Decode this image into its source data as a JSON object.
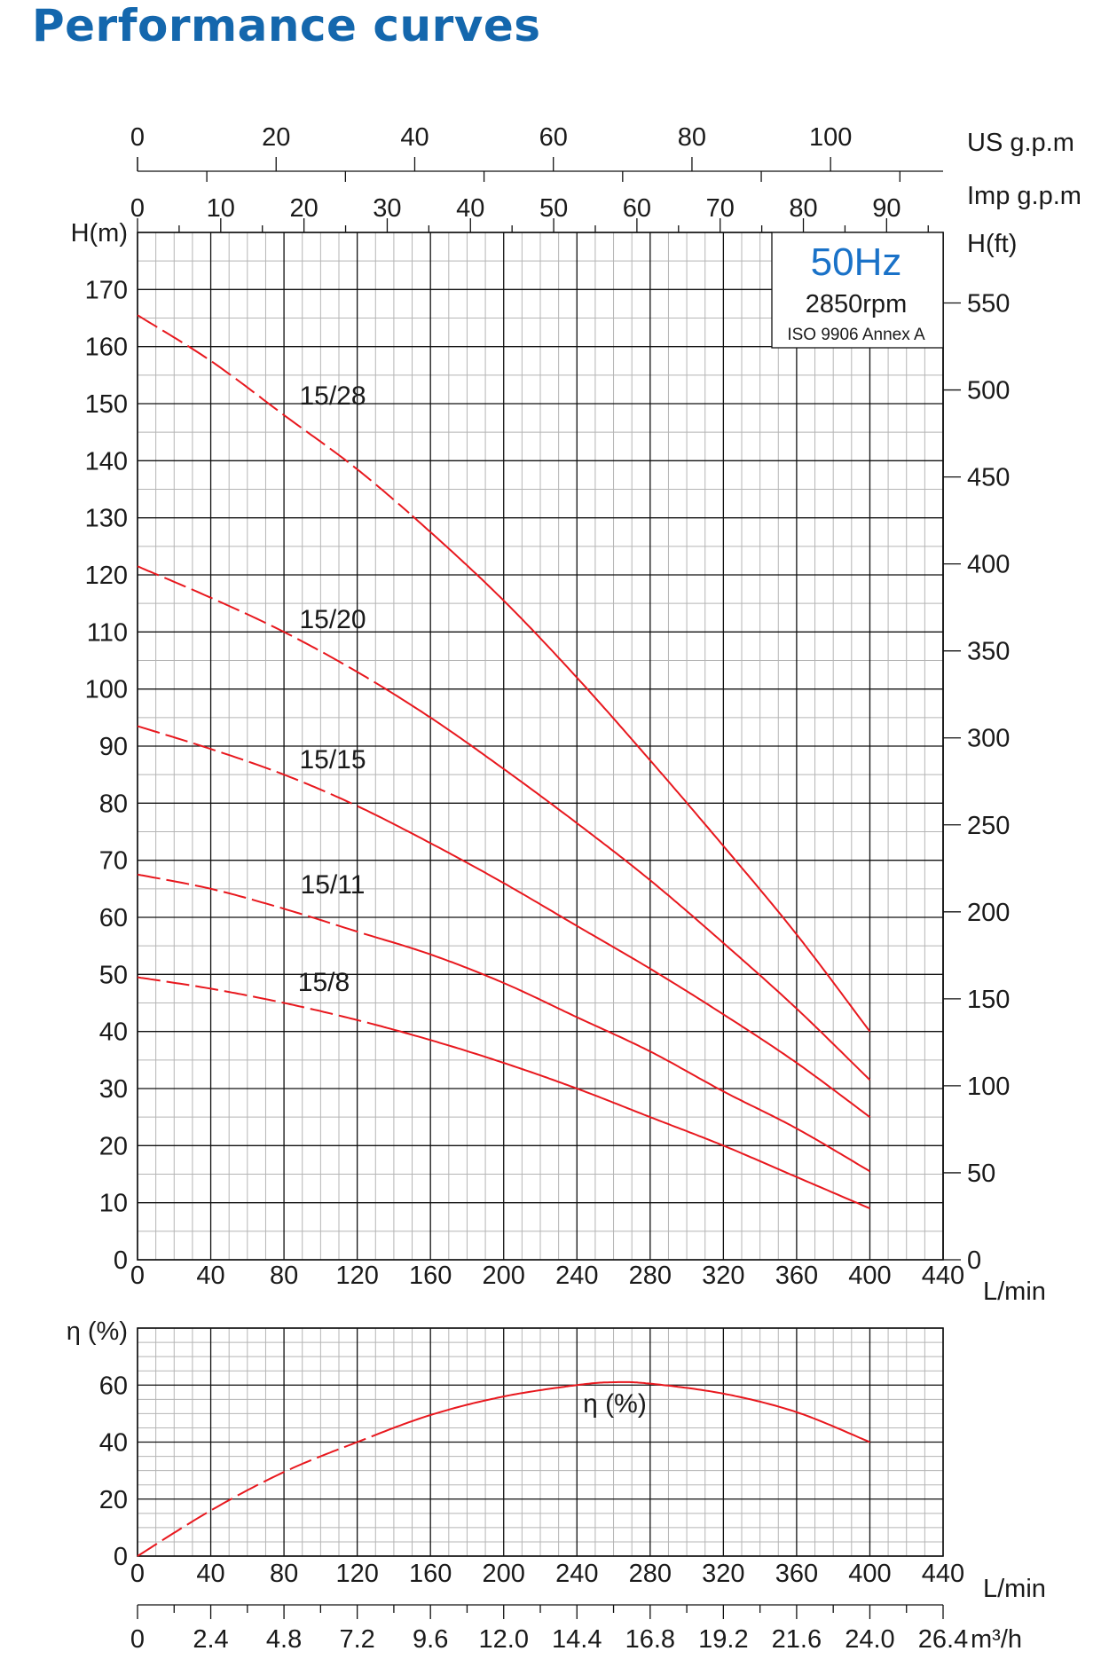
{
  "page_title": "Performance curves",
  "colors": {
    "title": "#1467ad",
    "curve": "#e8181e",
    "freq": "#1a72c8",
    "grid_major": "#111111",
    "grid_minor": "#b5b5b5"
  },
  "legend_box": {
    "frequency": "50Hz",
    "speed": "2850rpm",
    "standard": "ISO 9906 Annex A"
  },
  "chart_data": [
    {
      "type": "line",
      "x_unit": "L/min",
      "y_label": "H(m)",
      "y2_label": "H(ft)",
      "xlim": [
        0,
        440
      ],
      "ylim": [
        0,
        180
      ],
      "x_ticks": [
        0,
        40,
        80,
        120,
        160,
        200,
        240,
        280,
        320,
        360,
        400,
        440
      ],
      "y_ticks": [
        0,
        10,
        20,
        30,
        40,
        50,
        60,
        70,
        80,
        90,
        100,
        110,
        120,
        130,
        140,
        150,
        160,
        170
      ],
      "y2_ticks": [
        0,
        50,
        100,
        150,
        200,
        250,
        300,
        350,
        400,
        450,
        500,
        550
      ],
      "top_axes": [
        {
          "label": "US g.p.m",
          "ticks": [
            0,
            20,
            40,
            60,
            80,
            100
          ]
        },
        {
          "label": "Imp g.p.m",
          "ticks": [
            0,
            10,
            20,
            30,
            40,
            50,
            60,
            70,
            80,
            90
          ]
        }
      ],
      "grid": true,
      "series": [
        {
          "name": "15/28",
          "dash_until": 150,
          "x": [
            0,
            40,
            80,
            120,
            160,
            200,
            240,
            280,
            320,
            360,
            400
          ],
          "y": [
            165.5,
            157.5,
            148,
            138.5,
            127.5,
            115.5,
            102,
            87.5,
            72.5,
            57,
            40
          ]
        },
        {
          "name": "15/20",
          "dash_until": 130,
          "x": [
            0,
            40,
            80,
            120,
            160,
            200,
            240,
            280,
            320,
            360,
            400
          ],
          "y": [
            121.5,
            116,
            110,
            103,
            95,
            86,
            76.5,
            66.5,
            55.5,
            44,
            31.5
          ]
        },
        {
          "name": "15/15",
          "dash_until": 130,
          "x": [
            0,
            40,
            80,
            120,
            160,
            200,
            240,
            280,
            320,
            360,
            400
          ],
          "y": [
            93.5,
            89.5,
            85,
            79.5,
            73,
            66,
            58.5,
            51,
            43,
            34.5,
            25
          ]
        },
        {
          "name": "15/11",
          "dash_until": 130,
          "x": [
            0,
            40,
            80,
            120,
            160,
            200,
            240,
            280,
            320,
            360,
            400
          ],
          "y": [
            67.5,
            65,
            61.5,
            57.5,
            53.5,
            48.5,
            42.5,
            36.5,
            29.5,
            23,
            15.5
          ]
        },
        {
          "name": "15/8",
          "dash_until": 130,
          "x": [
            0,
            40,
            80,
            120,
            160,
            200,
            240,
            280,
            320,
            360,
            400
          ],
          "y": [
            49.5,
            47.5,
            45,
            42,
            38.5,
            34.5,
            30,
            25,
            20,
            14.5,
            9
          ]
        }
      ]
    },
    {
      "type": "line",
      "x_unit": "L/min",
      "y_label": "η (%)",
      "xlim": [
        0,
        440
      ],
      "ylim": [
        0,
        80
      ],
      "x_ticks": [
        0,
        40,
        80,
        120,
        160,
        200,
        240,
        280,
        320,
        360,
        400,
        440
      ],
      "y_ticks": [
        0,
        20,
        40,
        60
      ],
      "bottom_axis": {
        "label": "m³/h",
        "ticks": [
          "0",
          "2.4",
          "4.8",
          "7.2",
          "9.6",
          "12.0",
          "14.4",
          "16.8",
          "19.2",
          "21.6",
          "24.0",
          "26.4"
        ]
      },
      "grid": true,
      "series": [
        {
          "name": "η (%)",
          "dash_until": 130,
          "x": [
            0,
            40,
            80,
            120,
            160,
            200,
            240,
            260,
            280,
            320,
            360,
            400
          ],
          "y": [
            0,
            16,
            29.5,
            40,
            49.5,
            56,
            60,
            61,
            60.5,
            57,
            50.5,
            40
          ]
        }
      ]
    }
  ]
}
